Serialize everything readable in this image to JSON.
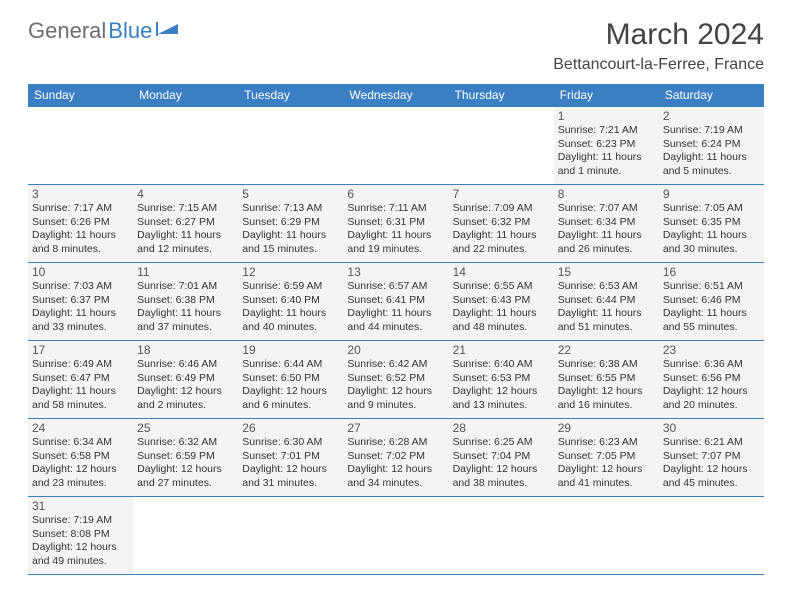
{
  "logo": {
    "general": "General",
    "blue": "Blue"
  },
  "title": "March 2024",
  "location": "Bettancourt-la-Ferree, France",
  "colors": {
    "header_bg": "#3a7fc4",
    "header_text": "#ffffff",
    "cell_bg": "#f4f4f4",
    "cell_border": "#3a7fc4",
    "page_bg": "#ffffff",
    "logo_gray": "#6d6d6d",
    "logo_blue": "#3a7fc4"
  },
  "day_headers": [
    "Sunday",
    "Monday",
    "Tuesday",
    "Wednesday",
    "Thursday",
    "Friday",
    "Saturday"
  ],
  "weeks": [
    [
      null,
      null,
      null,
      null,
      null,
      {
        "n": "1",
        "sunrise": "7:21 AM",
        "sunset": "6:23 PM",
        "day_h": 11,
        "day_m": 1,
        "unit": "minute"
      },
      {
        "n": "2",
        "sunrise": "7:19 AM",
        "sunset": "6:24 PM",
        "day_h": 11,
        "day_m": 5,
        "unit": "minutes"
      }
    ],
    [
      {
        "n": "3",
        "sunrise": "7:17 AM",
        "sunset": "6:26 PM",
        "day_h": 11,
        "day_m": 8,
        "unit": "minutes"
      },
      {
        "n": "4",
        "sunrise": "7:15 AM",
        "sunset": "6:27 PM",
        "day_h": 11,
        "day_m": 12,
        "unit": "minutes"
      },
      {
        "n": "5",
        "sunrise": "7:13 AM",
        "sunset": "6:29 PM",
        "day_h": 11,
        "day_m": 15,
        "unit": "minutes"
      },
      {
        "n": "6",
        "sunrise": "7:11 AM",
        "sunset": "6:31 PM",
        "day_h": 11,
        "day_m": 19,
        "unit": "minutes"
      },
      {
        "n": "7",
        "sunrise": "7:09 AM",
        "sunset": "6:32 PM",
        "day_h": 11,
        "day_m": 22,
        "unit": "minutes"
      },
      {
        "n": "8",
        "sunrise": "7:07 AM",
        "sunset": "6:34 PM",
        "day_h": 11,
        "day_m": 26,
        "unit": "minutes"
      },
      {
        "n": "9",
        "sunrise": "7:05 AM",
        "sunset": "6:35 PM",
        "day_h": 11,
        "day_m": 30,
        "unit": "minutes"
      }
    ],
    [
      {
        "n": "10",
        "sunrise": "7:03 AM",
        "sunset": "6:37 PM",
        "day_h": 11,
        "day_m": 33,
        "unit": "minutes"
      },
      {
        "n": "11",
        "sunrise": "7:01 AM",
        "sunset": "6:38 PM",
        "day_h": 11,
        "day_m": 37,
        "unit": "minutes"
      },
      {
        "n": "12",
        "sunrise": "6:59 AM",
        "sunset": "6:40 PM",
        "day_h": 11,
        "day_m": 40,
        "unit": "minutes"
      },
      {
        "n": "13",
        "sunrise": "6:57 AM",
        "sunset": "6:41 PM",
        "day_h": 11,
        "day_m": 44,
        "unit": "minutes"
      },
      {
        "n": "14",
        "sunrise": "6:55 AM",
        "sunset": "6:43 PM",
        "day_h": 11,
        "day_m": 48,
        "unit": "minutes"
      },
      {
        "n": "15",
        "sunrise": "6:53 AM",
        "sunset": "6:44 PM",
        "day_h": 11,
        "day_m": 51,
        "unit": "minutes"
      },
      {
        "n": "16",
        "sunrise": "6:51 AM",
        "sunset": "6:46 PM",
        "day_h": 11,
        "day_m": 55,
        "unit": "minutes"
      }
    ],
    [
      {
        "n": "17",
        "sunrise": "6:49 AM",
        "sunset": "6:47 PM",
        "day_h": 11,
        "day_m": 58,
        "unit": "minutes"
      },
      {
        "n": "18",
        "sunrise": "6:46 AM",
        "sunset": "6:49 PM",
        "day_h": 12,
        "day_m": 2,
        "unit": "minutes"
      },
      {
        "n": "19",
        "sunrise": "6:44 AM",
        "sunset": "6:50 PM",
        "day_h": 12,
        "day_m": 6,
        "unit": "minutes"
      },
      {
        "n": "20",
        "sunrise": "6:42 AM",
        "sunset": "6:52 PM",
        "day_h": 12,
        "day_m": 9,
        "unit": "minutes"
      },
      {
        "n": "21",
        "sunrise": "6:40 AM",
        "sunset": "6:53 PM",
        "day_h": 12,
        "day_m": 13,
        "unit": "minutes"
      },
      {
        "n": "22",
        "sunrise": "6:38 AM",
        "sunset": "6:55 PM",
        "day_h": 12,
        "day_m": 16,
        "unit": "minutes"
      },
      {
        "n": "23",
        "sunrise": "6:36 AM",
        "sunset": "6:56 PM",
        "day_h": 12,
        "day_m": 20,
        "unit": "minutes"
      }
    ],
    [
      {
        "n": "24",
        "sunrise": "6:34 AM",
        "sunset": "6:58 PM",
        "day_h": 12,
        "day_m": 23,
        "unit": "minutes"
      },
      {
        "n": "25",
        "sunrise": "6:32 AM",
        "sunset": "6:59 PM",
        "day_h": 12,
        "day_m": 27,
        "unit": "minutes"
      },
      {
        "n": "26",
        "sunrise": "6:30 AM",
        "sunset": "7:01 PM",
        "day_h": 12,
        "day_m": 31,
        "unit": "minutes"
      },
      {
        "n": "27",
        "sunrise": "6:28 AM",
        "sunset": "7:02 PM",
        "day_h": 12,
        "day_m": 34,
        "unit": "minutes"
      },
      {
        "n": "28",
        "sunrise": "6:25 AM",
        "sunset": "7:04 PM",
        "day_h": 12,
        "day_m": 38,
        "unit": "minutes"
      },
      {
        "n": "29",
        "sunrise": "6:23 AM",
        "sunset": "7:05 PM",
        "day_h": 12,
        "day_m": 41,
        "unit": "minutes"
      },
      {
        "n": "30",
        "sunrise": "6:21 AM",
        "sunset": "7:07 PM",
        "day_h": 12,
        "day_m": 45,
        "unit": "minutes"
      }
    ],
    [
      {
        "n": "31",
        "sunrise": "7:19 AM",
        "sunset": "8:08 PM",
        "day_h": 12,
        "day_m": 49,
        "unit": "minutes"
      },
      null,
      null,
      null,
      null,
      null,
      null
    ]
  ]
}
